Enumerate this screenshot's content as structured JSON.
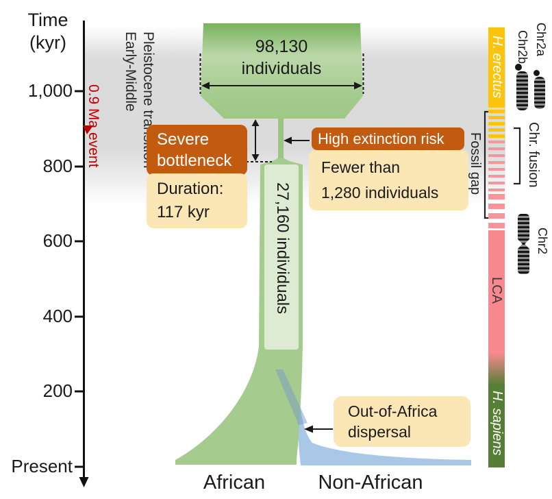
{
  "figure": {
    "axis": {
      "title_line1": "Time",
      "title_line2": "(kyr)",
      "ticks": [
        "1,000",
        "800",
        "600",
        "400",
        "200",
        "Present"
      ]
    },
    "annotations": {
      "ma_event": "0.9 Ma event",
      "transition_line1": "Early-Middle",
      "transition_line2": "Pleistocene transition",
      "top_population_line1": "98,130",
      "top_population_line2": "individuals",
      "column_population": "27,160 individuals",
      "bottleneck_title_line1": "Severe",
      "bottleneck_title_line2": "bottleneck",
      "bottleneck_body_line1": "Duration:",
      "bottleneck_body_line2": "117 kyr",
      "extinction_title": "High extinction risk",
      "extinction_body_line1": "Fewer than",
      "extinction_body_line2": "1,280 individuals",
      "dispersal_line1": "Out-of-Africa",
      "dispersal_line2": "dispersal",
      "branch_african": "African",
      "branch_non_african": "Non-African"
    },
    "species_bar": {
      "h_erectus": "H. erectus",
      "fossil_gap": "Fossil gap",
      "chr_fusion": "Chr. fusion",
      "lca": "LCA",
      "h_sapiens": "H. sapiens",
      "chr2a": "Chr2a",
      "chr2b": "Chr2b",
      "chr2": "Chr2",
      "gap_dashes": {
        "yellow_count": 5,
        "pink_thin_count": 8,
        "pink_thick_count": 4
      }
    },
    "colors": {
      "population_green": "#a6cb8e",
      "population_green_dark": "#79b25f",
      "inner_box_green": "#dcebd1",
      "non_african_blue": "#a9c7e6",
      "label_orange": "#c25a0f",
      "label_yellow": "#fbe7b5",
      "erectus_yellow": "#fdc40d",
      "lca_pink": "#f9898f",
      "sapiens_green": "#567e36",
      "event_red": "#c00000",
      "transition_gray": "#dbdbdb"
    }
  }
}
